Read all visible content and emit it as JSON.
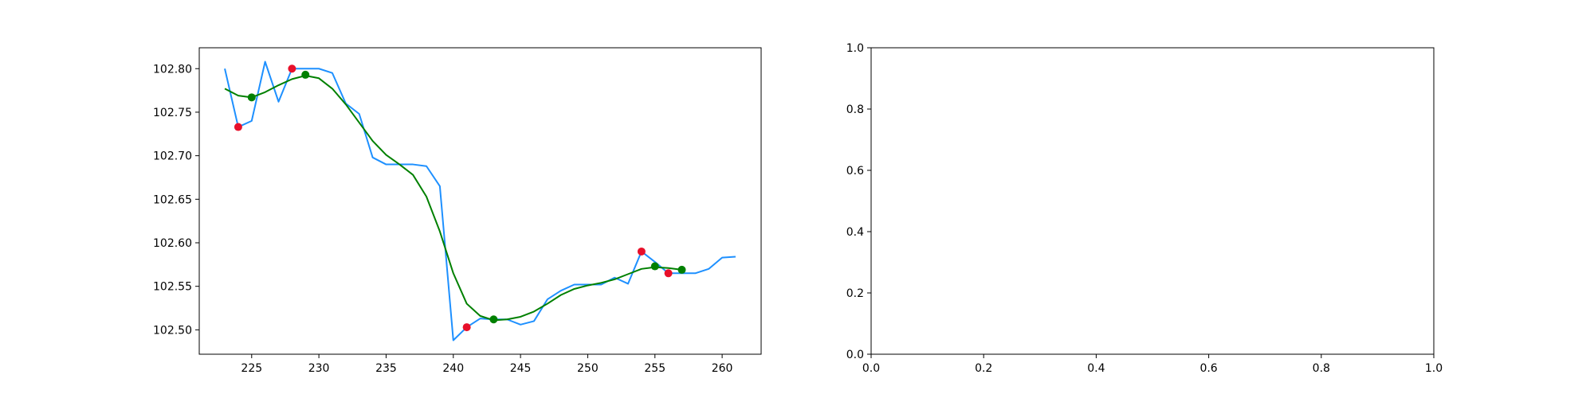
{
  "chart_data": [
    {
      "type": "line",
      "title": "",
      "xlabel": "",
      "ylabel": "",
      "xlim": [
        221.1,
        262.9
      ],
      "ylim": [
        102.472,
        102.824
      ],
      "xticks": [
        225,
        230,
        235,
        240,
        245,
        250,
        255,
        260
      ],
      "xtick_labels": [
        "225",
        "230",
        "235",
        "240",
        "245",
        "250",
        "255",
        "260"
      ],
      "yticks": [
        102.5,
        102.55,
        102.6,
        102.65,
        102.7,
        102.75,
        102.8
      ],
      "ytick_labels": [
        "102.50",
        "102.55",
        "102.60",
        "102.65",
        "102.70",
        "102.75",
        "102.80"
      ],
      "grid": false,
      "series": [
        {
          "kind": "line",
          "color": "#1e90ff",
          "x": [
            223,
            224,
            225,
            226,
            227,
            228,
            229,
            230,
            231,
            232,
            233,
            234,
            235,
            236,
            237,
            238,
            239,
            240,
            241,
            242,
            243,
            244,
            245,
            246,
            247,
            248,
            249,
            250,
            251,
            252,
            253,
            254,
            255,
            256,
            257,
            258,
            259,
            260,
            261
          ],
          "y": [
            102.8,
            102.733,
            102.74,
            102.808,
            102.762,
            102.8,
            102.8,
            102.8,
            102.795,
            102.76,
            102.748,
            102.698,
            102.69,
            102.69,
            102.69,
            102.688,
            102.665,
            102.488,
            102.503,
            102.513,
            102.512,
            102.512,
            102.506,
            102.51,
            102.535,
            102.545,
            102.552,
            102.552,
            102.552,
            102.56,
            102.553,
            102.59,
            102.578,
            102.565,
            102.565,
            102.565,
            102.57,
            102.583,
            102.584
          ]
        },
        {
          "kind": "line",
          "color": "#008000",
          "x": [
            223,
            224,
            225,
            226,
            227,
            228,
            229,
            230,
            231,
            232,
            233,
            234,
            235,
            236,
            237,
            238,
            239,
            240,
            241,
            242,
            243,
            244,
            245,
            246,
            247,
            248,
            249,
            250,
            251,
            252,
            253,
            254,
            255,
            256,
            257
          ],
          "y": [
            102.777,
            102.769,
            102.767,
            102.773,
            102.781,
            102.788,
            102.792,
            102.789,
            102.777,
            102.759,
            102.738,
            102.717,
            102.701,
            102.69,
            102.678,
            102.653,
            102.613,
            102.565,
            102.53,
            102.516,
            102.511,
            102.512,
            102.515,
            102.521,
            102.53,
            102.54,
            102.547,
            102.551,
            102.554,
            102.558,
            102.564,
            102.57,
            102.572,
            102.571,
            102.569
          ]
        },
        {
          "kind": "scatter",
          "color": "#e8102a",
          "x": [
            224,
            228,
            241,
            254,
            256
          ],
          "y": [
            102.733,
            102.8,
            102.503,
            102.59,
            102.565
          ]
        },
        {
          "kind": "scatter",
          "color": "#008000",
          "x": [
            225,
            229,
            243,
            255,
            257
          ],
          "y": [
            102.767,
            102.793,
            102.512,
            102.573,
            102.569
          ]
        }
      ]
    },
    {
      "type": "line",
      "title": "",
      "xlabel": "",
      "ylabel": "",
      "xlim": [
        0,
        1
      ],
      "ylim": [
        0,
        1
      ],
      "xticks": [
        0,
        0.2,
        0.4,
        0.6,
        0.8,
        1.0
      ],
      "xtick_labels": [
        "0.0",
        "0.2",
        "0.4",
        "0.6",
        "0.8",
        "1.0"
      ],
      "yticks": [
        0,
        0.2,
        0.4,
        0.6,
        0.8,
        1.0
      ],
      "ytick_labels": [
        "0.0",
        "0.2",
        "0.4",
        "0.6",
        "0.8",
        "1.0"
      ],
      "grid": false,
      "series": []
    }
  ]
}
